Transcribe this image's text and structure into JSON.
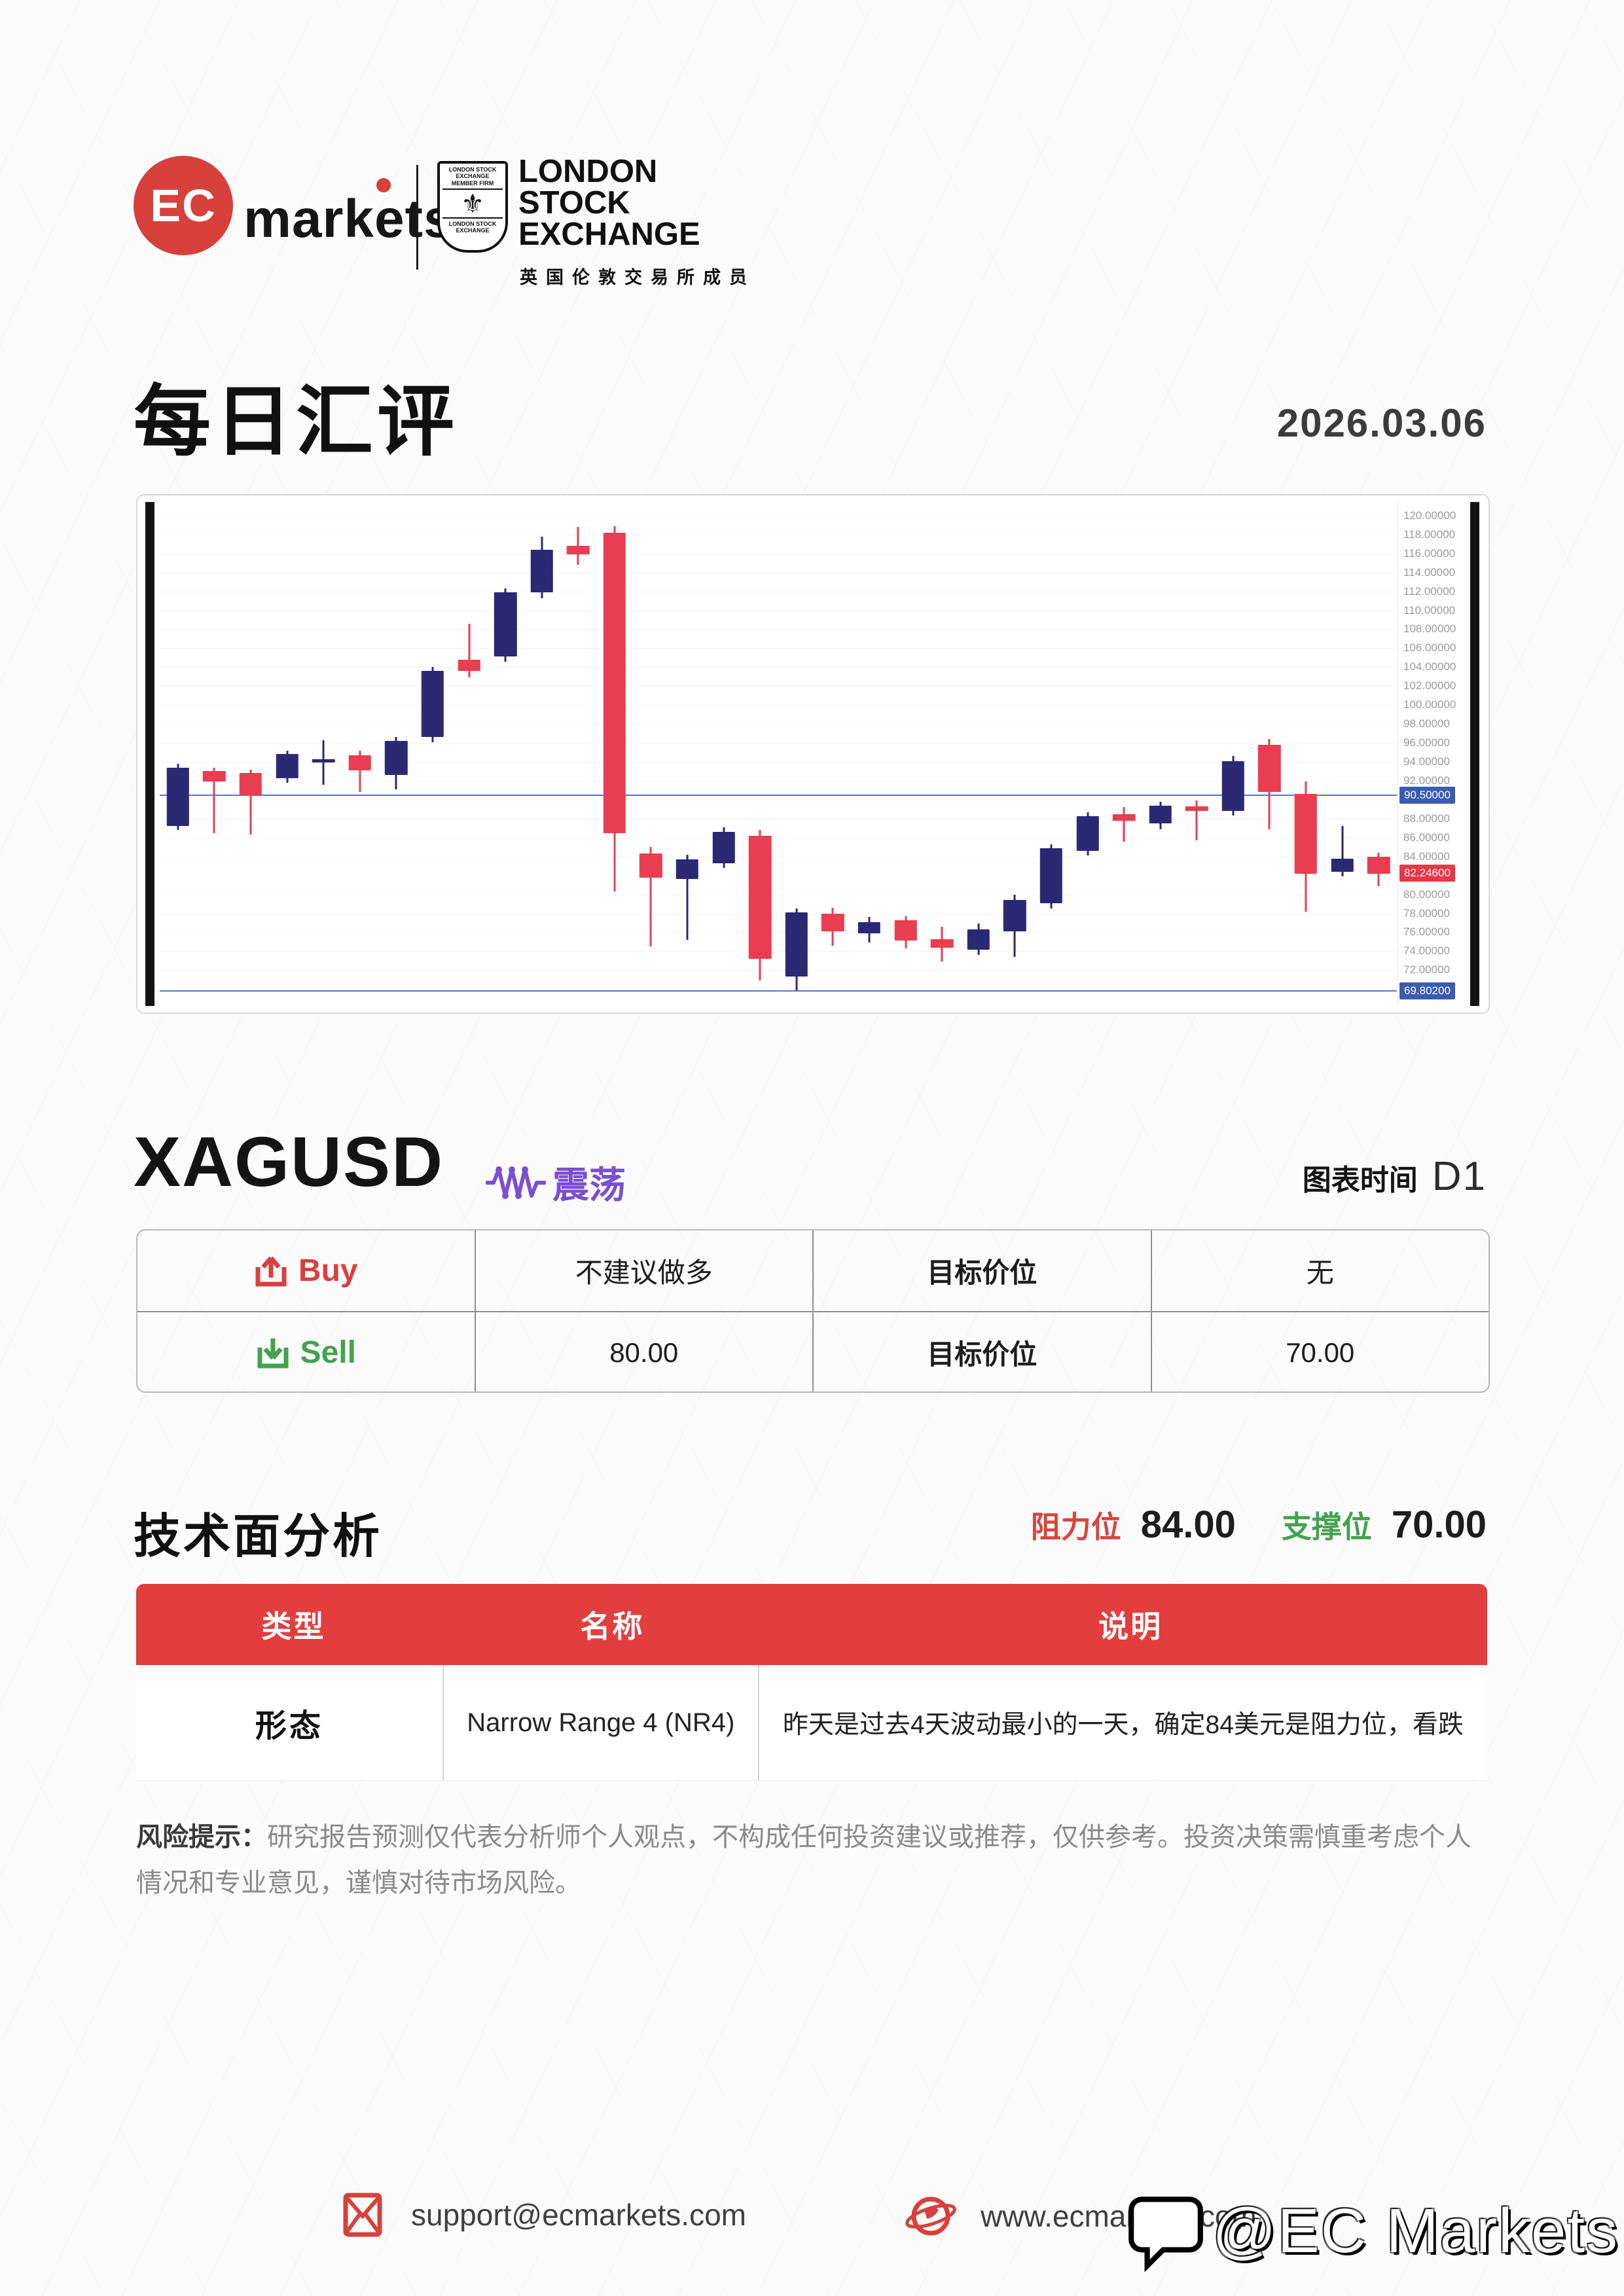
{
  "header": {
    "logo_ec": "EC",
    "logo_word": "markets",
    "lse_crest_top": "LONDON STOCK EXCHANGE MEMBER FIRM",
    "lse_crest_bottom": "LONDON STOCK EXCHANGE",
    "lse_name_lines": "LONDON\nSTOCK\nEXCHANGE",
    "lse_cn": "英国伦敦交易所成员"
  },
  "title": {
    "text": "每日汇评",
    "date": "2026.03.06"
  },
  "instrument": {
    "symbol": "XAGUSD",
    "trend_label": "震荡",
    "timeframe_label": "图表时间",
    "timeframe": "D1"
  },
  "chart_data": {
    "type": "candlestick",
    "symbol": "XAGUSD",
    "timeframe": "D1",
    "grid": true,
    "up_color": "#2b2973",
    "down_color": "#ea3d52",
    "level_line_color": "#5577cc",
    "y_axis": {
      "min": 68.5,
      "max": 121.3,
      "tick_step": 2,
      "ticks": [
        {
          "value": 120,
          "label": "120.00000"
        },
        {
          "value": 118,
          "label": "118.00000"
        },
        {
          "value": 116,
          "label": "116.00000"
        },
        {
          "value": 114,
          "label": "114.00000"
        },
        {
          "value": 112,
          "label": "112.00000"
        },
        {
          "value": 110,
          "label": "110.00000"
        },
        {
          "value": 108,
          "label": "108.00000"
        },
        {
          "value": 106,
          "label": "106.00000"
        },
        {
          "value": 104,
          "label": "104.00000"
        },
        {
          "value": 102,
          "label": "102.00000"
        },
        {
          "value": 100,
          "label": "100.00000"
        },
        {
          "value": 98,
          "label": "98.00000"
        },
        {
          "value": 96,
          "label": "96.00000"
        },
        {
          "value": 94,
          "label": "94.00000"
        },
        {
          "value": 92,
          "label": "92.00000"
        },
        {
          "value": 88,
          "label": "88.00000"
        },
        {
          "value": 86,
          "label": "86.00000"
        },
        {
          "value": 84,
          "label": "84.00000"
        },
        {
          "value": 80,
          "label": "80.00000"
        },
        {
          "value": 78,
          "label": "78.00000"
        },
        {
          "value": 76,
          "label": "76.00000"
        },
        {
          "value": 74,
          "label": "74.00000"
        },
        {
          "value": 72,
          "label": "72.00000"
        }
      ]
    },
    "levels": [
      {
        "value": 90.5,
        "label": "90.50000",
        "color": "#3a5cb0",
        "kind": "line-badge"
      },
      {
        "value": 69.802,
        "label": "69.80200",
        "color": "#3a5cb0",
        "kind": "line-badge"
      },
      {
        "value": 82.246,
        "label": "82.24600",
        "color": "#e83748",
        "kind": "price-badge"
      }
    ],
    "candles": [
      {
        "o": 87.2,
        "h": 93.8,
        "l": 86.8,
        "c": 93.4
      },
      {
        "o": 93.0,
        "h": 93.4,
        "l": 86.5,
        "c": 91.9
      },
      {
        "o": 92.8,
        "h": 93.2,
        "l": 86.3,
        "c": 90.4
      },
      {
        "o": 92.3,
        "h": 95.2,
        "l": 91.8,
        "c": 94.8
      },
      {
        "o": 93.9,
        "h": 96.3,
        "l": 91.6,
        "c": 94.3
      },
      {
        "o": 94.7,
        "h": 95.2,
        "l": 90.8,
        "c": 93.1
      },
      {
        "o": 92.6,
        "h": 96.6,
        "l": 91.1,
        "c": 96.2
      },
      {
        "o": 96.6,
        "h": 104.0,
        "l": 96.1,
        "c": 103.6
      },
      {
        "o": 104.8,
        "h": 108.6,
        "l": 102.9,
        "c": 103.6
      },
      {
        "o": 105.1,
        "h": 112.3,
        "l": 104.6,
        "c": 111.9
      },
      {
        "o": 111.9,
        "h": 117.8,
        "l": 111.3,
        "c": 116.4
      },
      {
        "o": 116.8,
        "h": 118.8,
        "l": 114.8,
        "c": 115.9
      },
      {
        "o": 118.2,
        "h": 118.9,
        "l": 80.3,
        "c": 86.5
      },
      {
        "o": 84.3,
        "h": 85.0,
        "l": 74.5,
        "c": 81.8
      },
      {
        "o": 81.6,
        "h": 84.2,
        "l": 75.2,
        "c": 83.7
      },
      {
        "o": 83.3,
        "h": 87.1,
        "l": 82.8,
        "c": 86.6
      },
      {
        "o": 86.2,
        "h": 86.8,
        "l": 70.9,
        "c": 73.2
      },
      {
        "o": 71.3,
        "h": 78.5,
        "l": 69.9,
        "c": 78.1
      },
      {
        "o": 78.0,
        "h": 78.6,
        "l": 74.6,
        "c": 76.1
      },
      {
        "o": 75.9,
        "h": 77.6,
        "l": 74.9,
        "c": 77.1
      },
      {
        "o": 77.3,
        "h": 77.7,
        "l": 74.3,
        "c": 75.1
      },
      {
        "o": 75.3,
        "h": 76.6,
        "l": 72.9,
        "c": 74.4
      },
      {
        "o": 74.2,
        "h": 76.9,
        "l": 73.6,
        "c": 76.3
      },
      {
        "o": 76.1,
        "h": 80.0,
        "l": 73.4,
        "c": 79.4
      },
      {
        "o": 79.1,
        "h": 85.3,
        "l": 78.5,
        "c": 84.9
      },
      {
        "o": 84.6,
        "h": 88.7,
        "l": 84.1,
        "c": 88.3
      },
      {
        "o": 88.5,
        "h": 89.2,
        "l": 85.6,
        "c": 87.8
      },
      {
        "o": 87.5,
        "h": 89.8,
        "l": 86.9,
        "c": 89.4
      },
      {
        "o": 89.3,
        "h": 89.9,
        "l": 85.7,
        "c": 88.8
      },
      {
        "o": 88.8,
        "h": 94.6,
        "l": 88.3,
        "c": 94.1
      },
      {
        "o": 95.8,
        "h": 96.4,
        "l": 86.9,
        "c": 90.8
      },
      {
        "o": 90.6,
        "h": 91.9,
        "l": 78.2,
        "c": 82.2
      },
      {
        "o": 82.4,
        "h": 87.2,
        "l": 81.9,
        "c": 83.8
      },
      {
        "o": 84.0,
        "h": 84.4,
        "l": 80.9,
        "c": 82.2
      }
    ]
  },
  "signal_table": {
    "rows": [
      {
        "action": "Buy",
        "cells": [
          "不建议做多",
          "目标价位",
          "无"
        ]
      },
      {
        "action": "Sell",
        "cells": [
          "80.00",
          "目标价位",
          "70.00"
        ]
      }
    ]
  },
  "analysis": {
    "title": "技术面分析",
    "resistance_label": "阻力位",
    "resistance": "84.00",
    "support_label": "支撑位",
    "support": "70.00",
    "table": {
      "headers": [
        "类型",
        "名称",
        "说明"
      ],
      "row": {
        "type": "形态",
        "name": "Narrow Range 4 (NR4)",
        "desc": "昨天是过去4天波动最小的一天，确定84美元是阻力位，看跌"
      }
    }
  },
  "risk": {
    "label": "风险提示：",
    "text": "研究报告预测仅代表分析师个人观点，不构成任何投资建议或推荐，仅供参考。投资决策需慎重考虑个人情况和专业意见，谨慎对待市场风险。"
  },
  "footer": {
    "email": "support@ecmarkets.com",
    "website": "www.ecmarkets.com",
    "watermark": "@EC Markets"
  },
  "colors": {
    "accent_red": "#e23e3e",
    "buy_red": "#d94040",
    "sell_green": "#43a24f",
    "trend_purple": "#7a4fd0",
    "candle_up": "#2b2973",
    "candle_down": "#ea3d52"
  }
}
